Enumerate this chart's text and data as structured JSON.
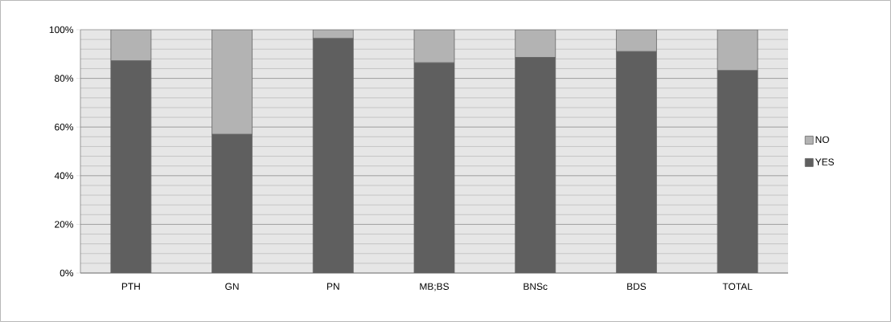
{
  "chart_data": {
    "type": "bar",
    "stacked": true,
    "categories": [
      "PTH",
      "GN",
      "PN",
      "MB;BS",
      "BNSc",
      "BDS",
      "TOTAL"
    ],
    "series": [
      {
        "name": "YES",
        "color": "#5f5f5f",
        "values": [
          87.2,
          57,
          96.4,
          86.4,
          88.6,
          91,
          83.2
        ]
      },
      {
        "name": "NO",
        "color": "#b3b3b3",
        "values": [
          12.8,
          43,
          3.6,
          13.6,
          11.4,
          9,
          16.8
        ]
      }
    ],
    "ylim": [
      0,
      100
    ],
    "yticks": [
      {
        "value": 0,
        "label": "0%"
      },
      {
        "value": 20,
        "label": "20%"
      },
      {
        "value": 40,
        "label": "40%"
      },
      {
        "value": 60,
        "label": "60%"
      },
      {
        "value": 80,
        "label": "80%"
      },
      {
        "value": 100,
        "label": "100%"
      }
    ],
    "grid": "y",
    "legend": "right"
  }
}
